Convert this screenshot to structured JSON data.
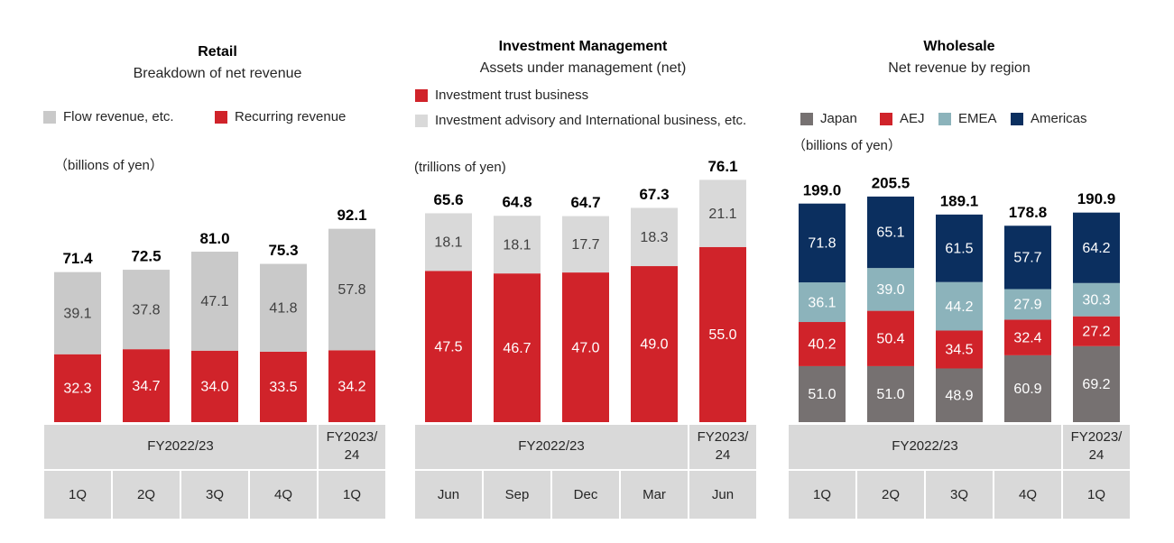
{
  "chart_data": [
    {
      "type": "stacked-bar",
      "title": "Retail",
      "subtitle": "Breakdown of net revenue",
      "unit": "（billions of yen）",
      "categories": [
        "1Q",
        "2Q",
        "3Q",
        "4Q",
        "1Q"
      ],
      "periods": [
        "FY2022/23",
        "FY2022/23",
        "FY2022/23",
        "FY2022/23",
        "FY2023/24"
      ],
      "series": [
        {
          "name": "Recurring revenue",
          "color": "#d0232a",
          "values": [
            32.3,
            34.7,
            34.0,
            33.5,
            34.2
          ],
          "value_labels": [
            "32.3",
            "34.7",
            "34.0",
            "33.5",
            "34.2"
          ]
        },
        {
          "name": "Flow revenue, etc.",
          "color": "#c9c9c9",
          "values": [
            39.1,
            37.8,
            47.1,
            41.8,
            57.8
          ],
          "value_labels": [
            "39.1",
            "37.8",
            "47.1",
            "41.8",
            "57.8"
          ]
        }
      ],
      "totals": [
        71.4,
        72.5,
        81.0,
        75.3,
        92.1
      ],
      "total_labels": [
        "71.4",
        "72.5",
        "81.0",
        "75.3",
        "92.1"
      ]
    },
    {
      "type": "stacked-bar",
      "title": "Investment Management",
      "subtitle": "Assets under management (net)",
      "unit": "(trillions of yen)",
      "categories": [
        "Jun",
        "Sep",
        "Dec",
        "Mar",
        "Jun"
      ],
      "periods": [
        "FY2022/23",
        "FY2022/23",
        "FY2022/23",
        "FY2022/23",
        "FY2023/24"
      ],
      "series": [
        {
          "name": "Investment trust business",
          "color": "#d0232a",
          "values": [
            47.5,
            46.7,
            47.0,
            49.0,
            55.0
          ],
          "value_labels": [
            "47.5",
            "46.7",
            "47.0",
            "49.0",
            "55.0"
          ]
        },
        {
          "name": "Investment advisory and International business, etc.",
          "color": "#d9d9d9",
          "values": [
            18.1,
            18.1,
            17.7,
            18.3,
            21.1
          ],
          "value_labels": [
            "18.1",
            "18.1",
            "17.7",
            "18.3",
            "21.1"
          ]
        }
      ],
      "totals": [
        65.6,
        64.8,
        64.7,
        67.3,
        76.1
      ],
      "total_labels": [
        "65.6",
        "64.8",
        "64.7",
        "67.3",
        "76.1"
      ]
    },
    {
      "type": "stacked-bar",
      "title": "Wholesale",
      "subtitle": "Net revenue by region",
      "unit": "（billions of yen）",
      "categories": [
        "1Q",
        "2Q",
        "3Q",
        "4Q",
        "1Q"
      ],
      "periods": [
        "FY2022/23",
        "FY2022/23",
        "FY2022/23",
        "FY2022/23",
        "FY2023/24"
      ],
      "series": [
        {
          "name": "Japan",
          "color": "#767171",
          "values": [
            51.0,
            51.0,
            48.9,
            60.9,
            69.2
          ],
          "value_labels": [
            "51.0",
            "51.0",
            "48.9",
            "60.9",
            "69.2"
          ]
        },
        {
          "name": "AEJ",
          "color": "#d0232a",
          "values": [
            40.2,
            50.4,
            34.5,
            32.4,
            27.2
          ],
          "value_labels": [
            "40.2",
            "50.4",
            "34.5",
            "32.4",
            "27.2"
          ]
        },
        {
          "name": "EMEA",
          "color": "#8cb3bb",
          "values": [
            36.1,
            39.0,
            44.2,
            27.9,
            30.3
          ],
          "value_labels": [
            "36.1",
            "39.0",
            "44.2",
            "27.9",
            "30.3"
          ]
        },
        {
          "name": "Americas",
          "color": "#0b2f5f",
          "values": [
            71.8,
            65.1,
            61.5,
            57.7,
            64.2
          ],
          "value_labels": [
            "71.8",
            "65.1",
            "61.5",
            "57.7",
            "64.2"
          ]
        }
      ],
      "totals": [
        199.0,
        205.5,
        189.1,
        178.8,
        190.9
      ],
      "total_labels": [
        "199.0",
        "205.5",
        "189.1",
        "178.8",
        "190.9"
      ]
    }
  ]
}
